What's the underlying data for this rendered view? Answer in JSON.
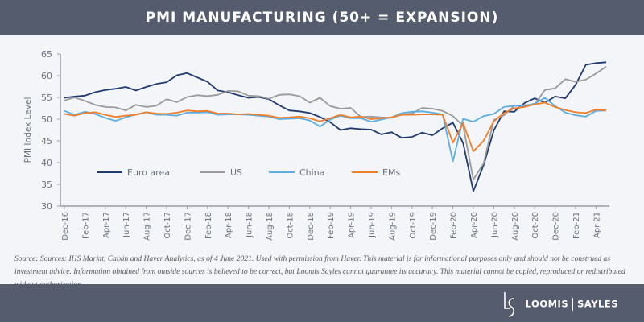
{
  "header": {
    "title": "PMI MANUFACTURING (50+ = EXPANSION)"
  },
  "chart_data": {
    "type": "line",
    "title": "PMI MANUFACTURING (50+ = EXPANSION)",
    "ylabel": "PMI Index Level",
    "xlabel": "",
    "ylim": [
      30,
      65
    ],
    "yticks": [
      30,
      35,
      40,
      45,
      50,
      55,
      60,
      65
    ],
    "grid": false,
    "legend": "inside-bottom",
    "x": [
      "Dec-16",
      "Jan-17",
      "Feb-17",
      "Mar-17",
      "Apr-17",
      "May-17",
      "Jun-17",
      "Jul-17",
      "Aug-17",
      "Sep-17",
      "Oct-17",
      "Nov-17",
      "Dec-17",
      "Jan-18",
      "Feb-18",
      "Mar-18",
      "Apr-18",
      "May-18",
      "Jun-18",
      "Jul-18",
      "Aug-18",
      "Sep-18",
      "Oct-18",
      "Nov-18",
      "Dec-18",
      "Jan-19",
      "Feb-19",
      "Mar-19",
      "Apr-19",
      "May-19",
      "Jun-19",
      "Jul-19",
      "Aug-19",
      "Sep-19",
      "Oct-19",
      "Nov-19",
      "Dec-19",
      "Jan-20",
      "Feb-20",
      "Mar-20",
      "Apr-20",
      "May-20",
      "Jun-20",
      "Jul-20",
      "Aug-20",
      "Sep-20",
      "Oct-20",
      "Nov-20",
      "Dec-20",
      "Jan-21",
      "Feb-21",
      "Mar-21",
      "Apr-21",
      "May-21"
    ],
    "xtick_labels": [
      "Dec-16",
      "Feb-17",
      "Apr-17",
      "Jun-17",
      "Aug-17",
      "Oct-17",
      "Dec-17",
      "Feb-18",
      "Apr-18",
      "Jun-18",
      "Aug-18",
      "Oct-18",
      "Dec-18",
      "Feb-19",
      "Apr-19",
      "Jun-19",
      "Aug-19",
      "Oct-19",
      "Dec-19",
      "Feb-20",
      "Apr-20",
      "Jun-20",
      "Aug-20",
      "Oct-20",
      "Dec-20",
      "Feb-21",
      "Apr-21"
    ],
    "series": [
      {
        "name": "Euro area",
        "color": "#1f3a6e",
        "values": [
          54.9,
          55.2,
          55.4,
          56.2,
          56.7,
          57.0,
          57.4,
          56.6,
          57.4,
          58.1,
          58.5,
          60.1,
          60.6,
          59.6,
          58.6,
          56.6,
          56.2,
          55.5,
          54.9,
          55.1,
          54.6,
          53.2,
          52.0,
          51.8,
          51.4,
          50.5,
          49.3,
          47.5,
          47.9,
          47.7,
          47.6,
          46.5,
          47.0,
          45.7,
          45.9,
          46.9,
          46.3,
          47.9,
          49.2,
          44.5,
          33.4,
          39.4,
          47.4,
          51.8,
          51.7,
          53.7,
          54.8,
          53.8,
          55.2,
          54.8,
          57.9,
          62.5,
          62.9,
          63.1
        ]
      },
      {
        "name": "US",
        "color": "#9a9a9a",
        "values": [
          54.3,
          55.0,
          54.2,
          53.3,
          52.8,
          52.7,
          52.0,
          53.3,
          52.8,
          53.1,
          54.6,
          53.9,
          55.1,
          55.5,
          55.3,
          55.6,
          56.5,
          56.4,
          55.4,
          55.3,
          54.7,
          55.6,
          55.7,
          55.3,
          53.8,
          54.9,
          53.0,
          52.4,
          52.6,
          50.5,
          50.6,
          50.4,
          50.3,
          51.1,
          51.3,
          52.6,
          52.4,
          51.9,
          50.7,
          48.5,
          36.1,
          39.8,
          49.8,
          50.9,
          53.1,
          53.2,
          53.4,
          56.7,
          57.1,
          59.2,
          58.6,
          59.1,
          60.5,
          62.1
        ]
      },
      {
        "name": "China",
        "color": "#5aaee0",
        "values": [
          51.9,
          51.0,
          51.7,
          51.2,
          50.3,
          49.6,
          50.4,
          51.1,
          51.6,
          51.0,
          51.0,
          50.8,
          51.5,
          51.5,
          51.6,
          51.0,
          51.1,
          51.1,
          51.0,
          50.8,
          50.6,
          50.0,
          50.1,
          50.2,
          49.7,
          48.3,
          49.9,
          50.8,
          50.2,
          50.2,
          49.4,
          49.9,
          50.4,
          51.4,
          51.7,
          51.8,
          51.5,
          51.1,
          40.3,
          50.1,
          49.4,
          50.7,
          51.2,
          52.8,
          53.1,
          53.0,
          53.6,
          54.9,
          53.0,
          51.5,
          50.9,
          50.6,
          51.9,
          52.0
        ]
      },
      {
        "name": "EMs",
        "color": "#f07d28",
        "values": [
          51.2,
          50.8,
          51.4,
          51.6,
          51.0,
          50.5,
          50.8,
          51.0,
          51.6,
          51.3,
          51.2,
          51.5,
          52.0,
          51.8,
          51.9,
          51.3,
          51.3,
          51.1,
          51.2,
          51.0,
          50.8,
          50.3,
          50.4,
          50.6,
          50.2,
          49.5,
          50.2,
          51.0,
          50.4,
          50.6,
          50.0,
          50.2,
          50.4,
          51.0,
          51.0,
          51.1,
          51.1,
          51.0,
          44.6,
          49.1,
          42.6,
          45.0,
          49.5,
          51.4,
          52.5,
          52.8,
          53.4,
          53.8,
          52.8,
          52.1,
          51.6,
          51.4,
          52.2,
          52.0
        ]
      }
    ]
  },
  "source": "Source: Sources: IHS Markit, Caixin and Haver Analytics, as of 4 June 2021.  Used with permission from Haver. This material is for informational purposes only and should not be construed as investment advice. Information obtained from outside sources is believed to be correct, but Loomis Sayles cannot guarantee its accuracy. This material cannot be copied, reproduced or redistributed without authorization.",
  "footer": {
    "logo_left": "LOOMIS",
    "logo_right": "SAYLES"
  }
}
